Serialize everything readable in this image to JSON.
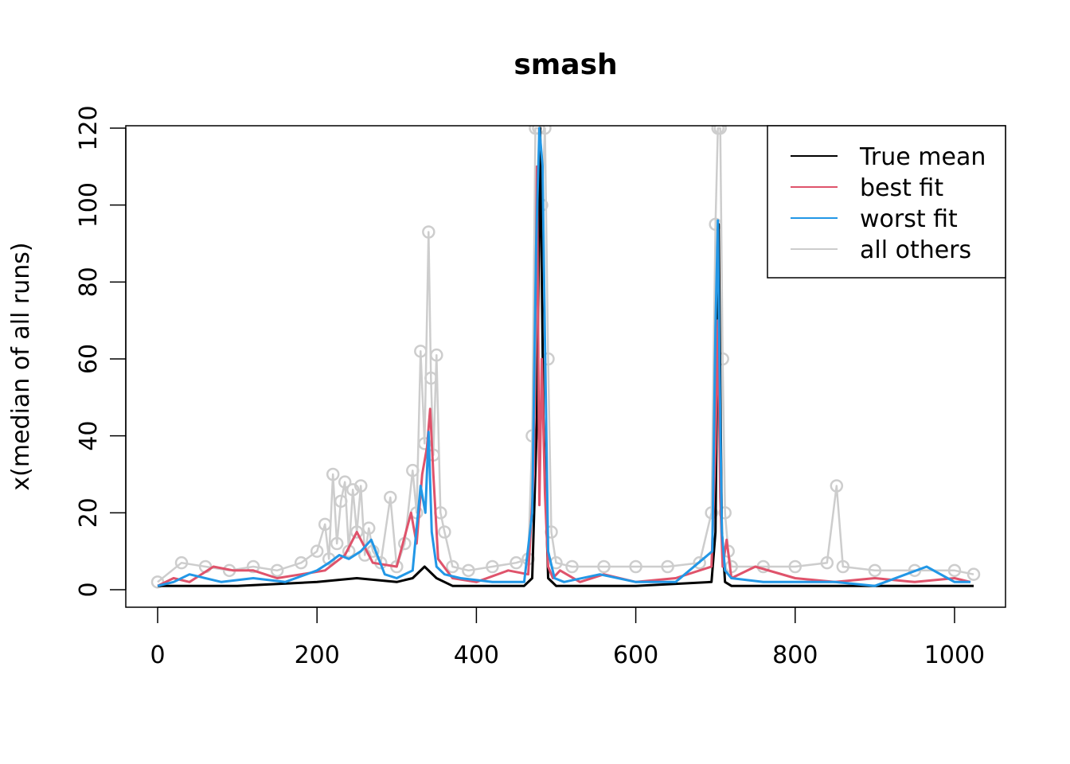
{
  "chart_data": {
    "type": "line",
    "title": "smash",
    "xlabel": "",
    "ylabel": "x(median of all runs)",
    "xlim": [
      0,
      1024
    ],
    "ylim": [
      0,
      120
    ],
    "x_ticks": [
      0,
      200,
      400,
      600,
      800,
      1000
    ],
    "y_ticks": [
      0,
      20,
      40,
      60,
      80,
      100,
      120
    ],
    "grid": false,
    "legend_position": "top-right",
    "colors": {
      "true_mean": "#000000",
      "best_fit": "#DF536B",
      "worst_fit": "#2297E6",
      "all_others": "#CDCDCD"
    },
    "legend": [
      "True mean",
      "best fit",
      "worst fit",
      "all others"
    ],
    "series": [
      {
        "name": "True mean",
        "x": [
          0,
          100,
          200,
          250,
          300,
          320,
          335,
          350,
          370,
          460,
          470,
          476,
          480,
          484,
          490,
          500,
          600,
          695,
          700,
          704,
          708,
          712,
          720,
          800,
          1024
        ],
        "y": [
          1,
          1,
          2,
          3,
          2,
          3,
          6,
          3,
          1,
          1,
          3,
          45,
          120,
          45,
          3,
          1,
          1,
          2,
          15,
          95,
          15,
          2,
          1,
          1,
          1
        ]
      },
      {
        "name": "best fit",
        "x": [
          0,
          20,
          40,
          70,
          95,
          120,
          150,
          180,
          210,
          235,
          250,
          270,
          300,
          318,
          325,
          332,
          338,
          342,
          346,
          352,
          370,
          400,
          440,
          465,
          472,
          476,
          479,
          482,
          486,
          490,
          496,
          505,
          530,
          560,
          600,
          650,
          695,
          700,
          703,
          706,
          709,
          714,
          720,
          750,
          800,
          850,
          900,
          950,
          1000,
          1020
        ],
        "y": [
          1,
          3,
          2,
          6,
          5,
          5,
          3,
          4,
          5,
          9,
          15,
          7,
          6,
          20,
          12,
          30,
          37,
          47,
          30,
          8,
          3,
          2,
          5,
          4,
          30,
          110,
          22,
          60,
          25,
          6,
          3,
          5,
          2,
          4,
          2,
          3,
          6,
          37,
          70,
          24,
          6,
          13,
          3,
          6,
          3,
          2,
          3,
          2,
          3,
          2
        ]
      },
      {
        "name": "worst fit",
        "x": [
          0,
          20,
          40,
          80,
          120,
          160,
          200,
          215,
          228,
          240,
          255,
          268,
          285,
          300,
          320,
          330,
          336,
          340,
          344,
          350,
          360,
          380,
          420,
          460,
          470,
          475,
          479,
          483,
          486,
          490,
          498,
          510,
          555,
          600,
          650,
          696,
          700,
          703,
          705,
          708,
          712,
          720,
          760,
          800,
          850,
          900,
          965,
          1000,
          1020
        ],
        "y": [
          1,
          2,
          4,
          2,
          3,
          2,
          5,
          7,
          9,
          8,
          10,
          13,
          4,
          3,
          5,
          27,
          20,
          41,
          15,
          6,
          4,
          3,
          2,
          2,
          20,
          90,
          120,
          110,
          65,
          10,
          3,
          2,
          4,
          2,
          2,
          10,
          68,
          96,
          60,
          15,
          5,
          3,
          2,
          2,
          2,
          1,
          6,
          2,
          2
        ]
      },
      {
        "name": "all others",
        "x": [
          0,
          30,
          60,
          90,
          120,
          150,
          180,
          200,
          210,
          215,
          220,
          225,
          230,
          235,
          240,
          245,
          250,
          255,
          260,
          265,
          270,
          280,
          292,
          300,
          310,
          320,
          325,
          330,
          335,
          340,
          343,
          346,
          350,
          355,
          360,
          370,
          390,
          420,
          450,
          465,
          470,
          474,
          478,
          482,
          486,
          490,
          494,
          500,
          520,
          560,
          600,
          640,
          680,
          695,
          700,
          703,
          706,
          709,
          712,
          716,
          720,
          760,
          800,
          840,
          852,
          860,
          900,
          950,
          1000,
          1024
        ],
        "y": [
          2,
          7,
          6,
          5,
          6,
          5,
          7,
          10,
          17,
          8,
          30,
          12,
          23,
          28,
          10,
          26,
          15,
          27,
          9,
          16,
          10,
          7,
          24,
          6,
          12,
          31,
          20,
          62,
          38,
          93,
          55,
          35,
          61,
          20,
          15,
          6,
          5,
          6,
          7,
          8,
          40,
          120,
          120,
          100,
          120,
          60,
          15,
          7,
          6,
          6,
          6,
          6,
          7,
          20,
          95,
          120,
          120,
          60,
          20,
          10,
          6,
          6,
          6,
          7,
          27,
          6,
          5,
          5,
          5,
          4
        ]
      }
    ]
  }
}
